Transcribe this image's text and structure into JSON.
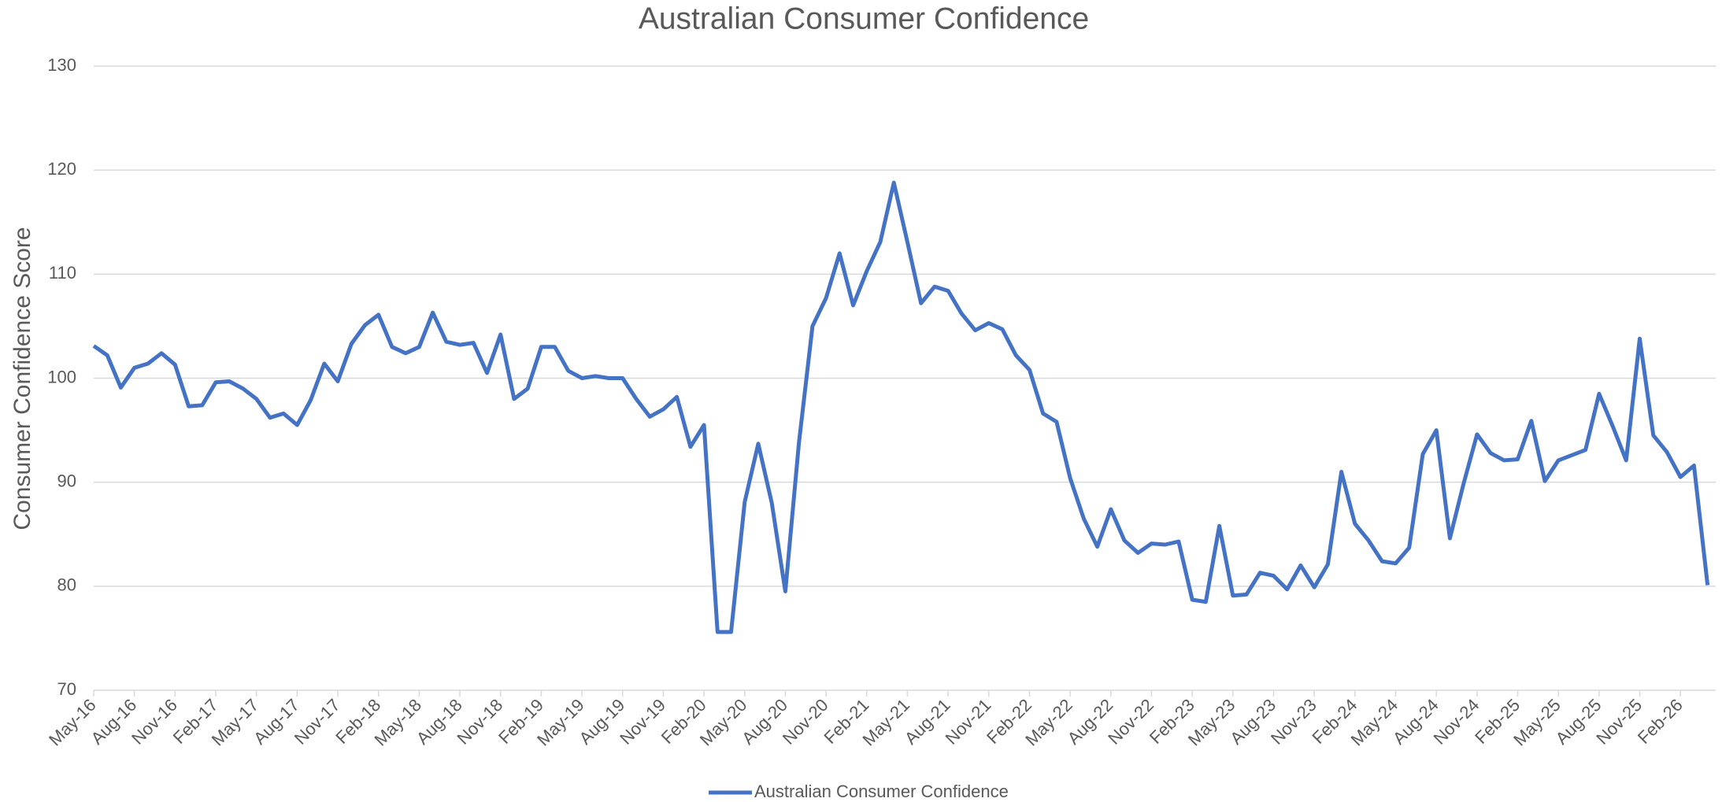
{
  "chart_data": {
    "type": "line",
    "title": "Australian Consumer Confidence",
    "y_label": "Consumer Confidence Score",
    "categories": [
      "May-16",
      null,
      null,
      "Aug-16",
      null,
      null,
      "Nov-16",
      null,
      null,
      "Feb-17",
      null,
      null,
      "May-17",
      null,
      null,
      "Aug-17",
      null,
      null,
      "Nov-17",
      null,
      null,
      "Feb-18",
      null,
      null,
      "May-18",
      null,
      null,
      "Aug-18",
      null,
      null,
      "Nov-18",
      null,
      null,
      "Feb-19",
      null,
      null,
      "May-19",
      null,
      null,
      "Aug-19",
      null,
      null,
      "Nov-19",
      null,
      null,
      "Feb-20",
      null,
      null,
      "May-20",
      null,
      null,
      "Aug-20",
      null,
      null,
      "Nov-20",
      null,
      null,
      "Feb-21",
      null,
      null,
      "May-21",
      null,
      null,
      "Aug-21",
      null,
      null,
      "Nov-21",
      null,
      null,
      "Feb-22",
      null,
      null,
      "May-22",
      null,
      null,
      "Aug-22",
      null,
      null,
      "Nov-22",
      null,
      null,
      "Feb-23",
      null,
      null,
      "May-23",
      null,
      null,
      "Aug-23",
      null,
      null,
      "Nov-23",
      null,
      null,
      "Feb-24",
      null,
      null,
      "May-24",
      null,
      null,
      "Aug-24",
      null,
      null,
      "Nov-24",
      null,
      null,
      "Feb-25",
      null,
      null,
      "May-25",
      null,
      null,
      "Aug-25",
      null,
      null,
      "Nov-25",
      null,
      null,
      "Feb-26",
      null,
      null
    ],
    "series": [
      {
        "name": "Australian Consumer Confidence",
        "color": "#4472c4",
        "values": [
          103.1,
          102.2,
          99.1,
          101.0,
          101.4,
          102.4,
          101.3,
          97.3,
          97.4,
          99.6,
          99.7,
          99.0,
          98.0,
          96.2,
          96.6,
          95.5,
          97.9,
          101.4,
          99.7,
          103.3,
          105.1,
          106.1,
          103.0,
          102.4,
          103.0,
          106.3,
          103.5,
          103.2,
          103.4,
          100.5,
          104.2,
          98.0,
          99.0,
          103.0,
          103.0,
          100.7,
          100.0,
          100.2,
          100.0,
          100.0,
          98.0,
          96.3,
          97.0,
          98.2,
          93.4,
          95.5,
          75.6,
          75.6,
          88.1,
          93.7,
          88.0,
          79.5,
          93.8,
          105.0,
          107.7,
          112.0,
          107.0,
          110.3,
          113.1,
          118.8,
          113.1,
          107.2,
          108.8,
          108.4,
          106.2,
          104.6,
          105.3,
          104.7,
          102.2,
          100.8,
          96.6,
          95.8,
          90.4,
          86.5,
          83.8,
          87.4,
          84.4,
          83.2,
          84.1,
          84.0,
          84.3,
          78.7,
          78.5,
          85.8,
          79.1,
          79.2,
          81.3,
          81.0,
          79.7,
          82.0,
          79.9,
          82.1,
          91.0,
          86.0,
          84.4,
          82.4,
          82.2,
          83.7,
          92.7,
          95.0,
          84.6,
          89.8,
          94.6,
          92.8,
          92.1,
          92.2,
          95.9,
          90.1,
          92.1,
          92.6,
          93.1,
          98.5,
          95.4,
          92.1,
          103.8,
          94.5,
          92.9,
          90.5,
          91.6,
          80.1
        ]
      }
    ],
    "ylim": [
      70,
      130
    ],
    "yticks": [
      70,
      80,
      90,
      100,
      110,
      120,
      130
    ],
    "grid": true,
    "legend": "bottom"
  }
}
